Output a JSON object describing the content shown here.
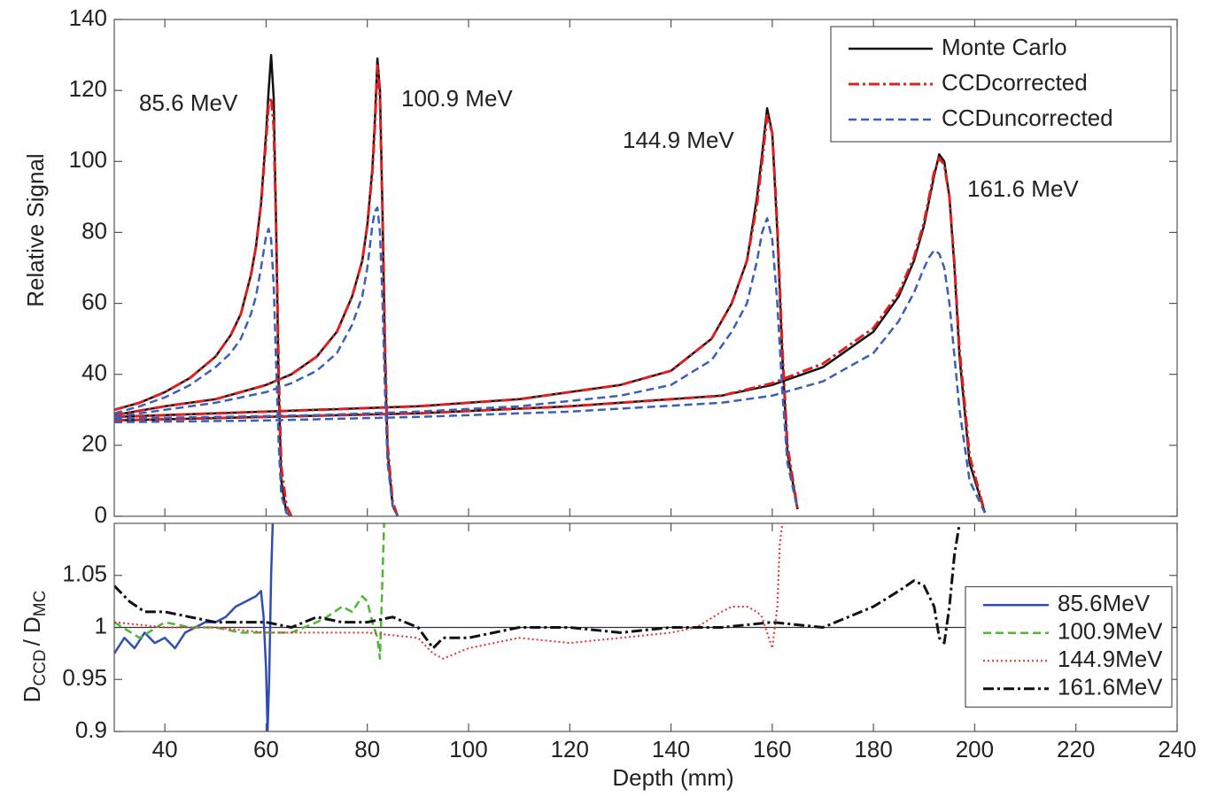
{
  "chart_data": [
    {
      "type": "line",
      "ylabel": "Relative Signal",
      "xlim": [
        30,
        240
      ],
      "ylim": [
        0,
        140
      ],
      "yticks": [
        0,
        20,
        40,
        60,
        80,
        100,
        120,
        140
      ],
      "legend": "upper right",
      "annotations": [
        "85.6 MeV",
        "100.9 MeV",
        "144.9 MeV",
        "161.6 MeV"
      ],
      "series": [
        {
          "name": "Monte Carlo",
          "color": "#111111",
          "dash": "solid",
          "curves": [
            {
              "x": [
                30,
                35,
                40,
                45,
                50,
                53,
                55,
                57,
                58,
                59,
                60,
                60.5,
                61,
                61.5,
                62,
                62.5,
                63,
                64,
                65
              ],
              "values": [
                30,
                32,
                35,
                39,
                45,
                51,
                57,
                68,
                76,
                88,
                108,
                120,
                130,
                118,
                80,
                35,
                10,
                1,
                0
              ]
            },
            {
              "x": [
                30,
                40,
                50,
                60,
                65,
                70,
                74,
                77,
                79,
                80,
                81,
                81.5,
                82,
                82.5,
                83,
                83.5,
                84,
                85,
                86
              ],
              "values": [
                28.5,
                31,
                33,
                37,
                40,
                45,
                52,
                62,
                72,
                82,
                98,
                112,
                129,
                120,
                85,
                45,
                18,
                3,
                0
              ]
            },
            {
              "x": [
                30,
                50,
                70,
                90,
                110,
                130,
                140,
                148,
                152,
                155,
                157,
                158,
                159,
                160,
                161,
                162,
                163,
                165
              ],
              "values": [
                28,
                29,
                30,
                31,
                33,
                37,
                41,
                50,
                60,
                72,
                90,
                102,
                115,
                108,
                80,
                45,
                18,
                2
              ]
            },
            {
              "x": [
                30,
                60,
                90,
                120,
                150,
                160,
                170,
                180,
                185,
                188,
                190,
                191,
                192,
                193,
                194,
                195,
                196,
                197,
                199,
                202
              ],
              "values": [
                27,
                28,
                29,
                31,
                34,
                37,
                42,
                52,
                62,
                72,
                82,
                89,
                96,
                102,
                100,
                90,
                70,
                45,
                15,
                1
              ]
            }
          ]
        },
        {
          "name": "CCDcorrected",
          "color": "#e02020",
          "dash": "dashdot",
          "curves": [
            {
              "x": [
                30,
                35,
                40,
                45,
                50,
                53,
                55,
                57,
                58,
                59,
                60,
                60.5,
                61,
                61.5,
                62,
                62.5,
                63,
                64,
                65
              ],
              "values": [
                30,
                32,
                35,
                39,
                45,
                51,
                57,
                68,
                76,
                88,
                106,
                116,
                118,
                110,
                80,
                40,
                14,
                3,
                0
              ]
            },
            {
              "x": [
                30,
                40,
                50,
                60,
                65,
                70,
                74,
                77,
                79,
                80,
                81,
                81.5,
                82,
                82.5,
                83,
                83.5,
                84,
                85,
                86
              ],
              "values": [
                28.5,
                31,
                33,
                37,
                40,
                45,
                52,
                62,
                72,
                82,
                97,
                110,
                127,
                118,
                85,
                48,
                20,
                4,
                0
              ]
            },
            {
              "x": [
                30,
                50,
                70,
                90,
                110,
                130,
                140,
                148,
                152,
                155,
                157,
                158,
                159,
                160,
                161,
                162,
                163,
                165
              ],
              "values": [
                28,
                29,
                30,
                31,
                33,
                37,
                41,
                50,
                60,
                72,
                88,
                100,
                113,
                108,
                82,
                47,
                20,
                2
              ]
            },
            {
              "x": [
                30,
                60,
                90,
                120,
                150,
                160,
                170,
                180,
                185,
                188,
                190,
                191,
                192,
                193,
                194,
                195,
                196,
                197,
                199,
                202
              ],
              "values": [
                27,
                28,
                29,
                31,
                34,
                37.5,
                43,
                53,
                63,
                73,
                83,
                90,
                97,
                101,
                99,
                90,
                71,
                47,
                17,
                1
              ]
            }
          ]
        },
        {
          "name": "CCDuncorrected",
          "color": "#3a5fb8",
          "dash": "dashed",
          "curves": [
            {
              "x": [
                30,
                35,
                40,
                45,
                50,
                53,
                55,
                57,
                58,
                59,
                60,
                60.5,
                61,
                61.5,
                62,
                62.5,
                63,
                64,
                65
              ],
              "values": [
                29,
                31,
                33.5,
                37,
                42,
                46,
                50,
                57,
                62,
                70,
                79,
                81,
                78,
                65,
                42,
                20,
                6,
                1,
                0
              ]
            },
            {
              "x": [
                30,
                40,
                50,
                60,
                65,
                70,
                74,
                77,
                79,
                80,
                81,
                81.5,
                82,
                82.5,
                83,
                83.5,
                84,
                85,
                86
              ],
              "values": [
                28,
                30,
                32,
                35,
                37.5,
                41,
                46,
                54,
                62,
                70,
                82,
                86,
                87,
                80,
                60,
                35,
                15,
                3,
                0
              ]
            },
            {
              "x": [
                30,
                50,
                70,
                90,
                110,
                130,
                140,
                148,
                152,
                155,
                157,
                158,
                159,
                160,
                161,
                162,
                163,
                165
              ],
              "values": [
                27.5,
                28,
                28.5,
                29.5,
                31,
                34,
                37,
                44,
                52,
                60,
                72,
                80,
                84,
                78,
                60,
                35,
                15,
                2
              ]
            },
            {
              "x": [
                30,
                60,
                90,
                120,
                150,
                160,
                170,
                180,
                185,
                188,
                190,
                191,
                192,
                193,
                194,
                195,
                196,
                197,
                199,
                202
              ],
              "values": [
                26.5,
                27,
                28,
                29.5,
                32,
                34,
                38,
                46,
                55,
                63,
                70,
                73,
                75,
                74,
                70,
                60,
                45,
                30,
                10,
                1
              ]
            }
          ]
        }
      ]
    },
    {
      "type": "line",
      "xlabel": "Depth (mm)",
      "ylabel_parts": [
        "D",
        "CCD",
        "/ D",
        "MC"
      ],
      "xlim": [
        30,
        240
      ],
      "xticks": [
        40,
        60,
        80,
        100,
        120,
        140,
        160,
        180,
        200,
        220,
        240
      ],
      "ylim": [
        0.9,
        1.1
      ],
      "yticks": [
        0.9,
        0.95,
        1,
        1.05
      ],
      "reference_line": 1,
      "legend": "center right",
      "series": [
        {
          "name": "85.6MeV",
          "color": "#2f4fb0",
          "dash": "solid",
          "x": [
            30,
            32,
            34,
            36,
            38,
            40,
            42,
            44,
            46,
            48,
            50,
            52,
            54,
            56,
            58,
            59,
            59.5,
            60,
            60.3,
            60.6,
            61,
            61.3
          ],
          "values": [
            0.975,
            0.99,
            0.98,
            0.995,
            0.985,
            0.99,
            0.98,
            0.995,
            1.0,
            1.005,
            1.005,
            1.01,
            1.02,
            1.025,
            1.03,
            1.035,
            1.01,
            0.96,
            0.9,
            0.95,
            1.05,
            1.1
          ]
        },
        {
          "name": "100.9MeV",
          "color": "#4cb834",
          "dash": "dashed",
          "x": [
            30,
            35,
            40,
            45,
            50,
            55,
            60,
            65,
            70,
            72,
            75,
            77,
            79,
            80,
            81,
            82,
            82.5,
            83,
            83.3
          ],
          "values": [
            1.005,
            0.99,
            1.005,
            1.0,
            1.0,
            0.995,
            0.995,
            0.995,
            1.005,
            1.01,
            1.02,
            1.015,
            1.03,
            1.025,
            1.005,
            0.99,
            0.97,
            1.05,
            1.1
          ]
        },
        {
          "name": "144.9MeV",
          "color": "#e83030",
          "dash": "dotted",
          "x": [
            30,
            40,
            50,
            60,
            70,
            80,
            90,
            93,
            95,
            100,
            110,
            120,
            130,
            140,
            145,
            150,
            152,
            155,
            157,
            158,
            159,
            160,
            161,
            161.5,
            162
          ],
          "values": [
            1.005,
            1.0,
            1.0,
            0.995,
            0.995,
            0.995,
            0.99,
            0.975,
            0.97,
            0.98,
            0.99,
            0.985,
            0.99,
            0.995,
            1.0,
            1.015,
            1.02,
            1.02,
            1.015,
            1.01,
            0.995,
            0.98,
            1.02,
            1.08,
            1.1
          ]
        },
        {
          "name": "161.6MeV",
          "color": "#111111",
          "dash": "dashdot",
          "x": [
            30,
            33,
            36,
            40,
            45,
            50,
            55,
            60,
            65,
            70,
            75,
            80,
            85,
            90,
            93,
            95,
            100,
            105,
            110,
            120,
            130,
            140,
            150,
            160,
            170,
            175,
            180,
            185,
            188,
            190,
            192,
            193,
            194,
            195,
            196,
            197
          ],
          "values": [
            1.04,
            1.025,
            1.015,
            1.015,
            1.01,
            1.005,
            1.005,
            1.005,
            1.0,
            1.01,
            1.005,
            1.005,
            1.01,
            1.0,
            0.98,
            0.99,
            0.99,
            0.995,
            1.0,
            1.0,
            0.995,
            1.0,
            1.0,
            1.005,
            1.0,
            1.01,
            1.02,
            1.035,
            1.045,
            1.04,
            1.02,
            0.99,
            0.985,
            1.02,
            1.07,
            1.1
          ]
        }
      ]
    }
  ]
}
